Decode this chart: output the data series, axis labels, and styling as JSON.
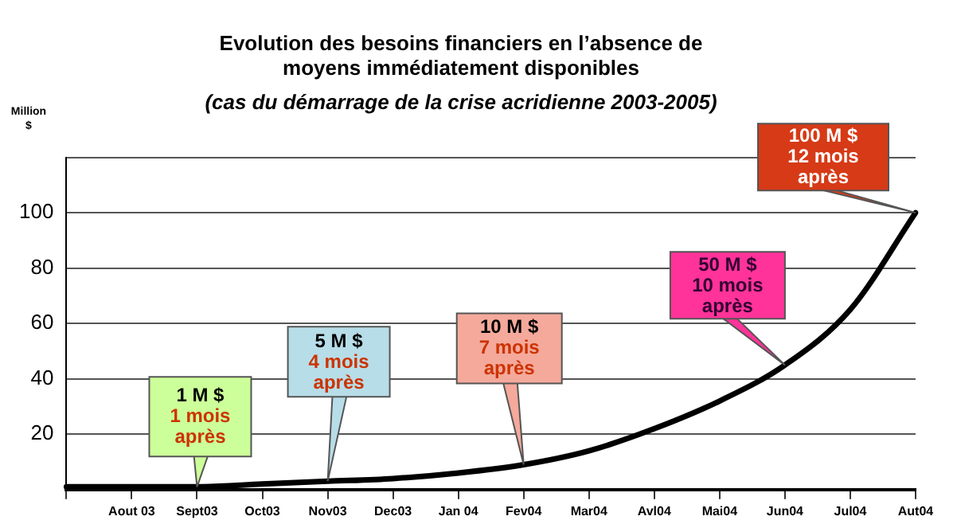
{
  "chart_data": {
    "type": "line",
    "title": [
      "Evolution des besoins financiers en l’absence de",
      "moyens immédiatement disponibles"
    ],
    "subtitle": "(cas du démarrage de la crise acridienne 2003-2005)",
    "ylabel": "Million $",
    "categories": [
      null,
      "Aout 03",
      "Sept03",
      "Oct03",
      "Nov03",
      "Dec03",
      "Jan 04",
      "Fev04",
      "Mar04",
      "Avl04",
      "Mai04",
      "Jun04",
      "Jul04",
      "Aut04"
    ],
    "series": [
      {
        "color": "#000000",
        "values": [
          1,
          1,
          1,
          2,
          3,
          4,
          6,
          9,
          14,
          22,
          32,
          45,
          65,
          100
        ]
      }
    ],
    "ylim": [
      0,
      120
    ],
    "yticks": [
      20,
      40,
      60,
      80,
      100,
      {
        "value": 120,
        "label": null
      }
    ],
    "grid": "y",
    "legend": false,
    "marker": "none",
    "line_style": "solid",
    "annotations": [
      {
        "text": "1 M $\n1 mois\naprès",
        "x": "Sept03",
        "y": 1
      },
      {
        "text": "5 M $\n4 mois\naprès",
        "x": "Nov03",
        "y": 3
      },
      {
        "text": "10 M $\n7 mois\naprès",
        "x": "Fev04",
        "y": 9
      },
      {
        "text": "50 M $\n10 mois\naprès",
        "x": "Jun04",
        "y": 45
      },
      {
        "text": "100 M $\n12 mois\naprès",
        "x": "Aut04",
        "y": 100
      }
    ]
  }
}
